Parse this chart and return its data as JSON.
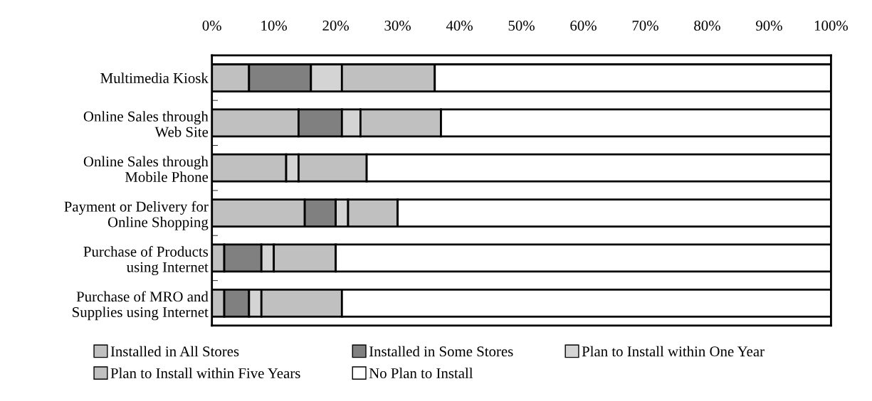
{
  "chart_data": {
    "type": "bar",
    "orientation": "horizontal",
    "stacked": true,
    "categories": [
      "Multimedia Kiosk",
      "Online Sales through\nWeb Site",
      "Online Sales through\nMobile Phone",
      "Payment or Delivery for\nOnline Shopping",
      "Purchase of Products\nusing Internet",
      "Purchase of MRO and\nSupplies using Internet"
    ],
    "series": [
      {
        "name": "Installed in All Stores",
        "color": "#c0c0c0",
        "values": [
          6,
          14,
          12,
          15,
          2,
          2
        ]
      },
      {
        "name": "Installed in Some Stores",
        "color": "#808080",
        "values": [
          10,
          7,
          null,
          5,
          6,
          4
        ]
      },
      {
        "name": "Plan to Install within One Year",
        "color": "#d4d4d4",
        "values": [
          5,
          3,
          2,
          2,
          2,
          2
        ]
      },
      {
        "name": "Plan to Install within Five Years",
        "color": "#c0c0c0",
        "values": [
          15,
          13,
          11,
          8,
          10,
          13
        ]
      },
      {
        "name": "No Plan to Install",
        "color": "#ffffff",
        "values": [
          64,
          63,
          75,
          70,
          80,
          79
        ]
      }
    ],
    "xlim": [
      0,
      100
    ],
    "xticks": [
      {
        "value": 0,
        "label": "0%"
      },
      {
        "value": 10,
        "label": "10%"
      },
      {
        "value": 20,
        "label": "20%"
      },
      {
        "value": 30,
        "label": "30%"
      },
      {
        "value": 40,
        "label": "40%"
      },
      {
        "value": 50,
        "label": "50%"
      },
      {
        "value": 60,
        "label": "60%"
      },
      {
        "value": 70,
        "label": "70%"
      },
      {
        "value": 80,
        "label": "80%"
      },
      {
        "value": 90,
        "label": "90%"
      },
      {
        "value": 100,
        "label": "100%"
      }
    ],
    "grid": false,
    "legend": "bottom"
  }
}
